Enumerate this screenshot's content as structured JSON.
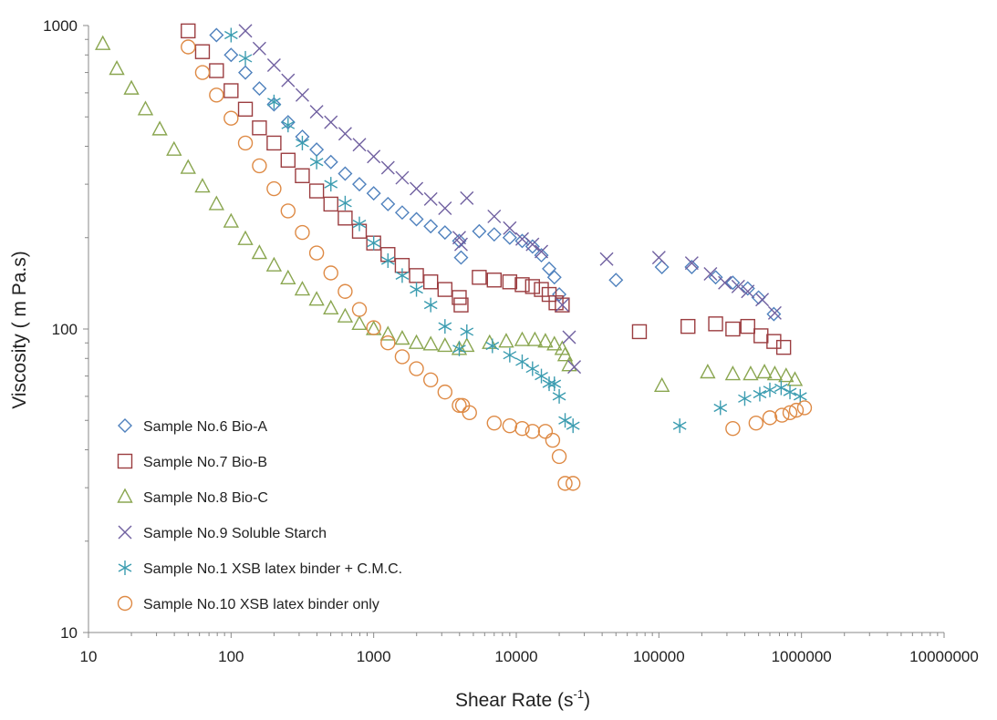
{
  "chart_data": {
    "type": "scatter",
    "xscale": "log",
    "yscale": "log",
    "xlim": [
      10,
      10000000
    ],
    "ylim": [
      10,
      1000
    ],
    "xticks": [
      "10",
      "100",
      "1000",
      "10000",
      "100000",
      "1000000",
      "10000000"
    ],
    "yticks": [
      "10",
      "100",
      "1000"
    ],
    "xlabel_main": "Shear Rate (s",
    "xlabel_sup": "-1",
    "xlabel_close": ")",
    "ylabel": "Viscosity ( m Pa.s)",
    "legend_position": "bottom-left",
    "series": [
      {
        "name": "Sample No.6 Bio-A",
        "marker": "diamond",
        "color": "#4f81bd",
        "points": [
          [
            79,
            930
          ],
          [
            100,
            800
          ],
          [
            126,
            700
          ],
          [
            158,
            620
          ],
          [
            200,
            550
          ],
          [
            251,
            480
          ],
          [
            316,
            430
          ],
          [
            398,
            390
          ],
          [
            501,
            355
          ],
          [
            631,
            325
          ],
          [
            794,
            300
          ],
          [
            1000,
            280
          ],
          [
            1259,
            258
          ],
          [
            1585,
            242
          ],
          [
            1995,
            230
          ],
          [
            2512,
            218
          ],
          [
            3162,
            208
          ],
          [
            3981,
            195
          ],
          [
            4100,
            172
          ],
          [
            5500,
            210
          ],
          [
            7000,
            205
          ],
          [
            9000,
            200
          ],
          [
            11000,
            195
          ],
          [
            13000,
            187
          ],
          [
            15000,
            175
          ],
          [
            17000,
            158
          ],
          [
            18500,
            148
          ],
          [
            20000,
            130
          ],
          [
            50000,
            145
          ],
          [
            105000,
            160
          ],
          [
            170000,
            160
          ],
          [
            250000,
            148
          ],
          [
            330000,
            142
          ],
          [
            420000,
            136
          ],
          [
            500000,
            127
          ],
          [
            640000,
            112
          ]
        ]
      },
      {
        "name": "Sample No.7 Bio-B",
        "marker": "square",
        "color": "#9b3d40",
        "points": [
          [
            50,
            960
          ],
          [
            63,
            820
          ],
          [
            79,
            710
          ],
          [
            100,
            610
          ],
          [
            126,
            530
          ],
          [
            158,
            460
          ],
          [
            200,
            410
          ],
          [
            251,
            360
          ],
          [
            316,
            320
          ],
          [
            398,
            285
          ],
          [
            501,
            258
          ],
          [
            631,
            232
          ],
          [
            794,
            210
          ],
          [
            1000,
            192
          ],
          [
            1259,
            176
          ],
          [
            1585,
            162
          ],
          [
            1995,
            150
          ],
          [
            2512,
            143
          ],
          [
            3162,
            135
          ],
          [
            3981,
            127
          ],
          [
            4100,
            120
          ],
          [
            5500,
            148
          ],
          [
            7000,
            145
          ],
          [
            9000,
            143
          ],
          [
            11000,
            140
          ],
          [
            13000,
            138
          ],
          [
            15000,
            135
          ],
          [
            17000,
            130
          ],
          [
            19000,
            122
          ],
          [
            21000,
            120
          ],
          [
            73000,
            98
          ],
          [
            160000,
            102
          ],
          [
            250000,
            104
          ],
          [
            330000,
            100
          ],
          [
            420000,
            102
          ],
          [
            520000,
            95
          ],
          [
            640000,
            91
          ],
          [
            750000,
            87
          ]
        ]
      },
      {
        "name": "Sample No.8 Bio-C",
        "marker": "triangle",
        "color": "#8aa650",
        "points": [
          [
            12.6,
            870
          ],
          [
            15.8,
            720
          ],
          [
            20,
            620
          ],
          [
            25.1,
            530
          ],
          [
            31.6,
            455
          ],
          [
            39.8,
            390
          ],
          [
            50,
            340
          ],
          [
            63,
            295
          ],
          [
            79,
            258
          ],
          [
            100,
            226
          ],
          [
            126,
            198
          ],
          [
            158,
            178
          ],
          [
            200,
            162
          ],
          [
            251,
            147
          ],
          [
            316,
            135
          ],
          [
            398,
            125
          ],
          [
            501,
            117
          ],
          [
            631,
            110
          ],
          [
            794,
            104
          ],
          [
            1000,
            100
          ],
          [
            1259,
            96
          ],
          [
            1585,
            93
          ],
          [
            1995,
            90
          ],
          [
            2512,
            89
          ],
          [
            3162,
            88
          ],
          [
            3981,
            86
          ],
          [
            4500,
            88
          ],
          [
            6500,
            90
          ],
          [
            8500,
            91
          ],
          [
            11000,
            92
          ],
          [
            13500,
            92
          ],
          [
            16000,
            91
          ],
          [
            18500,
            89
          ],
          [
            21000,
            86
          ],
          [
            22000,
            82
          ],
          [
            23500,
            76
          ],
          [
            105000,
            65
          ],
          [
            220000,
            72
          ],
          [
            330000,
            71
          ],
          [
            440000,
            71
          ],
          [
            550000,
            72
          ],
          [
            650000,
            71
          ],
          [
            780000,
            70
          ],
          [
            900000,
            68
          ]
        ]
      },
      {
        "name": "Sample No.9 Soluble Starch",
        "marker": "x",
        "color": "#7060a0",
        "points": [
          [
            126,
            960
          ],
          [
            158,
            840
          ],
          [
            200,
            740
          ],
          [
            251,
            660
          ],
          [
            316,
            590
          ],
          [
            398,
            520
          ],
          [
            501,
            480
          ],
          [
            631,
            440
          ],
          [
            794,
            405
          ],
          [
            1000,
            370
          ],
          [
            1259,
            340
          ],
          [
            1585,
            315
          ],
          [
            1995,
            290
          ],
          [
            2512,
            268
          ],
          [
            3162,
            250
          ],
          [
            3981,
            200
          ],
          [
            4100,
            190
          ],
          [
            4500,
            270
          ],
          [
            7000,
            235
          ],
          [
            9000,
            215
          ],
          [
            11000,
            198
          ],
          [
            13000,
            190
          ],
          [
            15000,
            180
          ],
          [
            21000,
            120
          ],
          [
            23500,
            94
          ],
          [
            25500,
            75
          ],
          [
            43000,
            170
          ],
          [
            100000,
            172
          ],
          [
            170000,
            165
          ],
          [
            230000,
            152
          ],
          [
            290000,
            142
          ],
          [
            360000,
            138
          ],
          [
            420000,
            133
          ],
          [
            530000,
            125
          ],
          [
            650000,
            113
          ]
        ]
      },
      {
        "name": "Sample No.1 XSB latex binder + C.M.C.",
        "marker": "asterisk",
        "color": "#3b9cb0",
        "points": [
          [
            100,
            930
          ],
          [
            126,
            780
          ],
          [
            200,
            560
          ],
          [
            251,
            470
          ],
          [
            316,
            410
          ],
          [
            398,
            355
          ],
          [
            501,
            300
          ],
          [
            631,
            260
          ],
          [
            794,
            222
          ],
          [
            1000,
            192
          ],
          [
            1259,
            168
          ],
          [
            1585,
            150
          ],
          [
            1995,
            135
          ],
          [
            2512,
            120
          ],
          [
            3162,
            102
          ],
          [
            3981,
            86
          ],
          [
            4500,
            98
          ],
          [
            6800,
            88
          ],
          [
            9000,
            82
          ],
          [
            11000,
            78
          ],
          [
            13000,
            74
          ],
          [
            15000,
            70
          ],
          [
            17000,
            66
          ],
          [
            18500,
            66
          ],
          [
            20000,
            60
          ],
          [
            22000,
            50
          ],
          [
            25000,
            48
          ],
          [
            140000,
            48
          ],
          [
            270000,
            55
          ],
          [
            400000,
            59
          ],
          [
            510000,
            61
          ],
          [
            600000,
            63
          ],
          [
            720000,
            64
          ],
          [
            830000,
            62
          ],
          [
            980000,
            60
          ]
        ]
      },
      {
        "name": "Sample No.10 XSB latex binder only",
        "marker": "circle",
        "color": "#de8a45",
        "points": [
          [
            50,
            850
          ],
          [
            63,
            700
          ],
          [
            79,
            590
          ],
          [
            100,
            495
          ],
          [
            126,
            410
          ],
          [
            158,
            345
          ],
          [
            200,
            290
          ],
          [
            251,
            245
          ],
          [
            316,
            208
          ],
          [
            398,
            178
          ],
          [
            501,
            153
          ],
          [
            631,
            133
          ],
          [
            794,
            116
          ],
          [
            1000,
            101
          ],
          [
            1259,
            90
          ],
          [
            1585,
            81
          ],
          [
            1995,
            74
          ],
          [
            2512,
            68
          ],
          [
            3162,
            62
          ],
          [
            3981,
            56
          ],
          [
            4200,
            56
          ],
          [
            4700,
            53
          ],
          [
            7000,
            49
          ],
          [
            9000,
            48
          ],
          [
            11000,
            47
          ],
          [
            13000,
            46
          ],
          [
            16000,
            46
          ],
          [
            18000,
            43
          ],
          [
            20000,
            38
          ],
          [
            22000,
            31
          ],
          [
            25000,
            31
          ],
          [
            330000,
            47
          ],
          [
            480000,
            49
          ],
          [
            600000,
            51
          ],
          [
            730000,
            52
          ],
          [
            830000,
            53
          ],
          [
            920000,
            54
          ],
          [
            1050000,
            55
          ]
        ]
      }
    ]
  }
}
